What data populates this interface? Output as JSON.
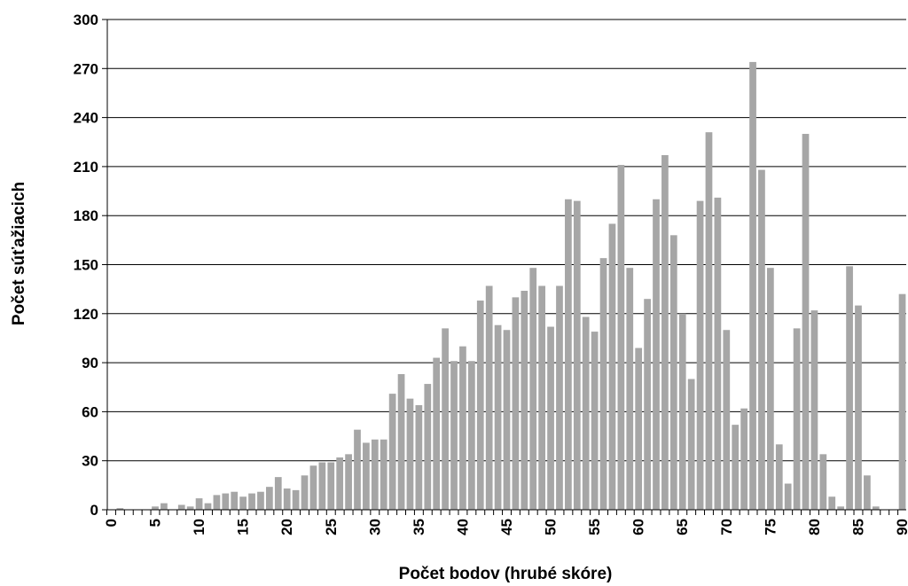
{
  "chart_data": {
    "type": "bar",
    "title": "",
    "xlabel": "Počet bodov  (hrubé  skóre)",
    "ylabel": "Počet súťažiacich",
    "ylim": [
      0,
      300
    ],
    "yticks": [
      0,
      30,
      60,
      90,
      120,
      150,
      180,
      210,
      240,
      270,
      300
    ],
    "xticks": [
      0,
      5,
      10,
      15,
      20,
      25,
      30,
      35,
      40,
      45,
      50,
      55,
      60,
      65,
      70,
      75,
      80,
      85,
      90
    ],
    "grid": true,
    "legend": "none",
    "bar_color": "#a6a6a6",
    "x": [
      0,
      1,
      2,
      3,
      4,
      5,
      6,
      7,
      8,
      9,
      10,
      11,
      12,
      13,
      14,
      15,
      16,
      17,
      18,
      19,
      20,
      21,
      22,
      23,
      24,
      25,
      26,
      27,
      28,
      29,
      30,
      31,
      32,
      33,
      34,
      35,
      36,
      37,
      38,
      39,
      40,
      41,
      42,
      43,
      44,
      45,
      46,
      47,
      48,
      49,
      50,
      51,
      52,
      53,
      54,
      55,
      56,
      57,
      58,
      59,
      60,
      61,
      62,
      63,
      64,
      65,
      66,
      67,
      68,
      69,
      70,
      71,
      72,
      73,
      74,
      75,
      76,
      77,
      78,
      79,
      80,
      81,
      82,
      83,
      84,
      85,
      86,
      87,
      88,
      89,
      90
    ],
    "values": [
      0,
      1,
      0,
      0,
      0,
      2,
      4,
      0,
      3,
      2,
      7,
      4,
      9,
      10,
      11,
      8,
      10,
      11,
      14,
      20,
      13,
      12,
      21,
      27,
      29,
      29,
      32,
      34,
      49,
      41,
      43,
      43,
      71,
      83,
      68,
      64,
      77,
      93,
      111,
      91,
      100,
      91,
      128,
      137,
      113,
      110,
      130,
      134,
      148,
      137,
      112,
      137,
      190,
      189,
      118,
      109,
      154,
      175,
      211,
      148,
      99,
      129,
      190,
      217,
      168,
      120,
      80,
      189,
      231,
      191,
      110,
      52,
      62,
      274,
      208,
      148,
      40,
      16,
      111,
      230,
      122,
      34,
      8,
      2,
      149,
      125,
      21,
      2,
      0,
      0,
      132
    ]
  }
}
